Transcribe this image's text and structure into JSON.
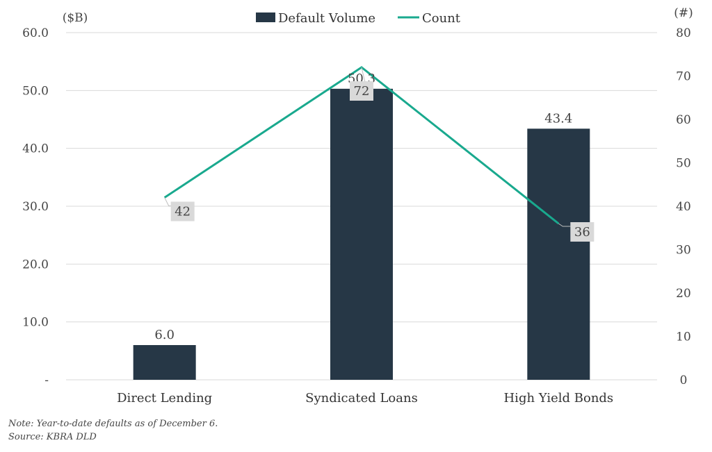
{
  "chart_data": {
    "type": "bar",
    "categories": [
      "Direct Lending",
      "Syndicated Loans",
      "High Yield Bonds"
    ],
    "series": [
      {
        "name": "Default Volume",
        "type": "bar",
        "axis": "left",
        "values": [
          6.0,
          50.3,
          43.4
        ],
        "labels": [
          "6.0",
          "50.3",
          "43.4"
        ]
      },
      {
        "name": "Count",
        "type": "line",
        "axis": "right",
        "values": [
          42,
          72,
          36
        ],
        "labels": [
          "42",
          "72",
          "36"
        ]
      }
    ],
    "left_axis": {
      "unit": "($B)",
      "ylim": [
        0,
        60
      ],
      "ticks": [
        "-",
        "10.0",
        "20.0",
        "30.0",
        "40.0",
        "50.0",
        "60.0"
      ]
    },
    "right_axis": {
      "unit": "(#)",
      "ylim": [
        0,
        80
      ],
      "ticks": [
        "0",
        "10",
        "20",
        "30",
        "40",
        "50",
        "60",
        "70",
        "80"
      ]
    },
    "legend_position": "top-center",
    "grid": true,
    "colors": {
      "bar": "#263746",
      "line": "#19A98E",
      "grid": "#d9d9d9",
      "label_box": "#d9d9d9"
    }
  },
  "notes": {
    "note": "Note: Year-to-date defaults as of December 6.",
    "source": "Source: KBRA DLD"
  }
}
